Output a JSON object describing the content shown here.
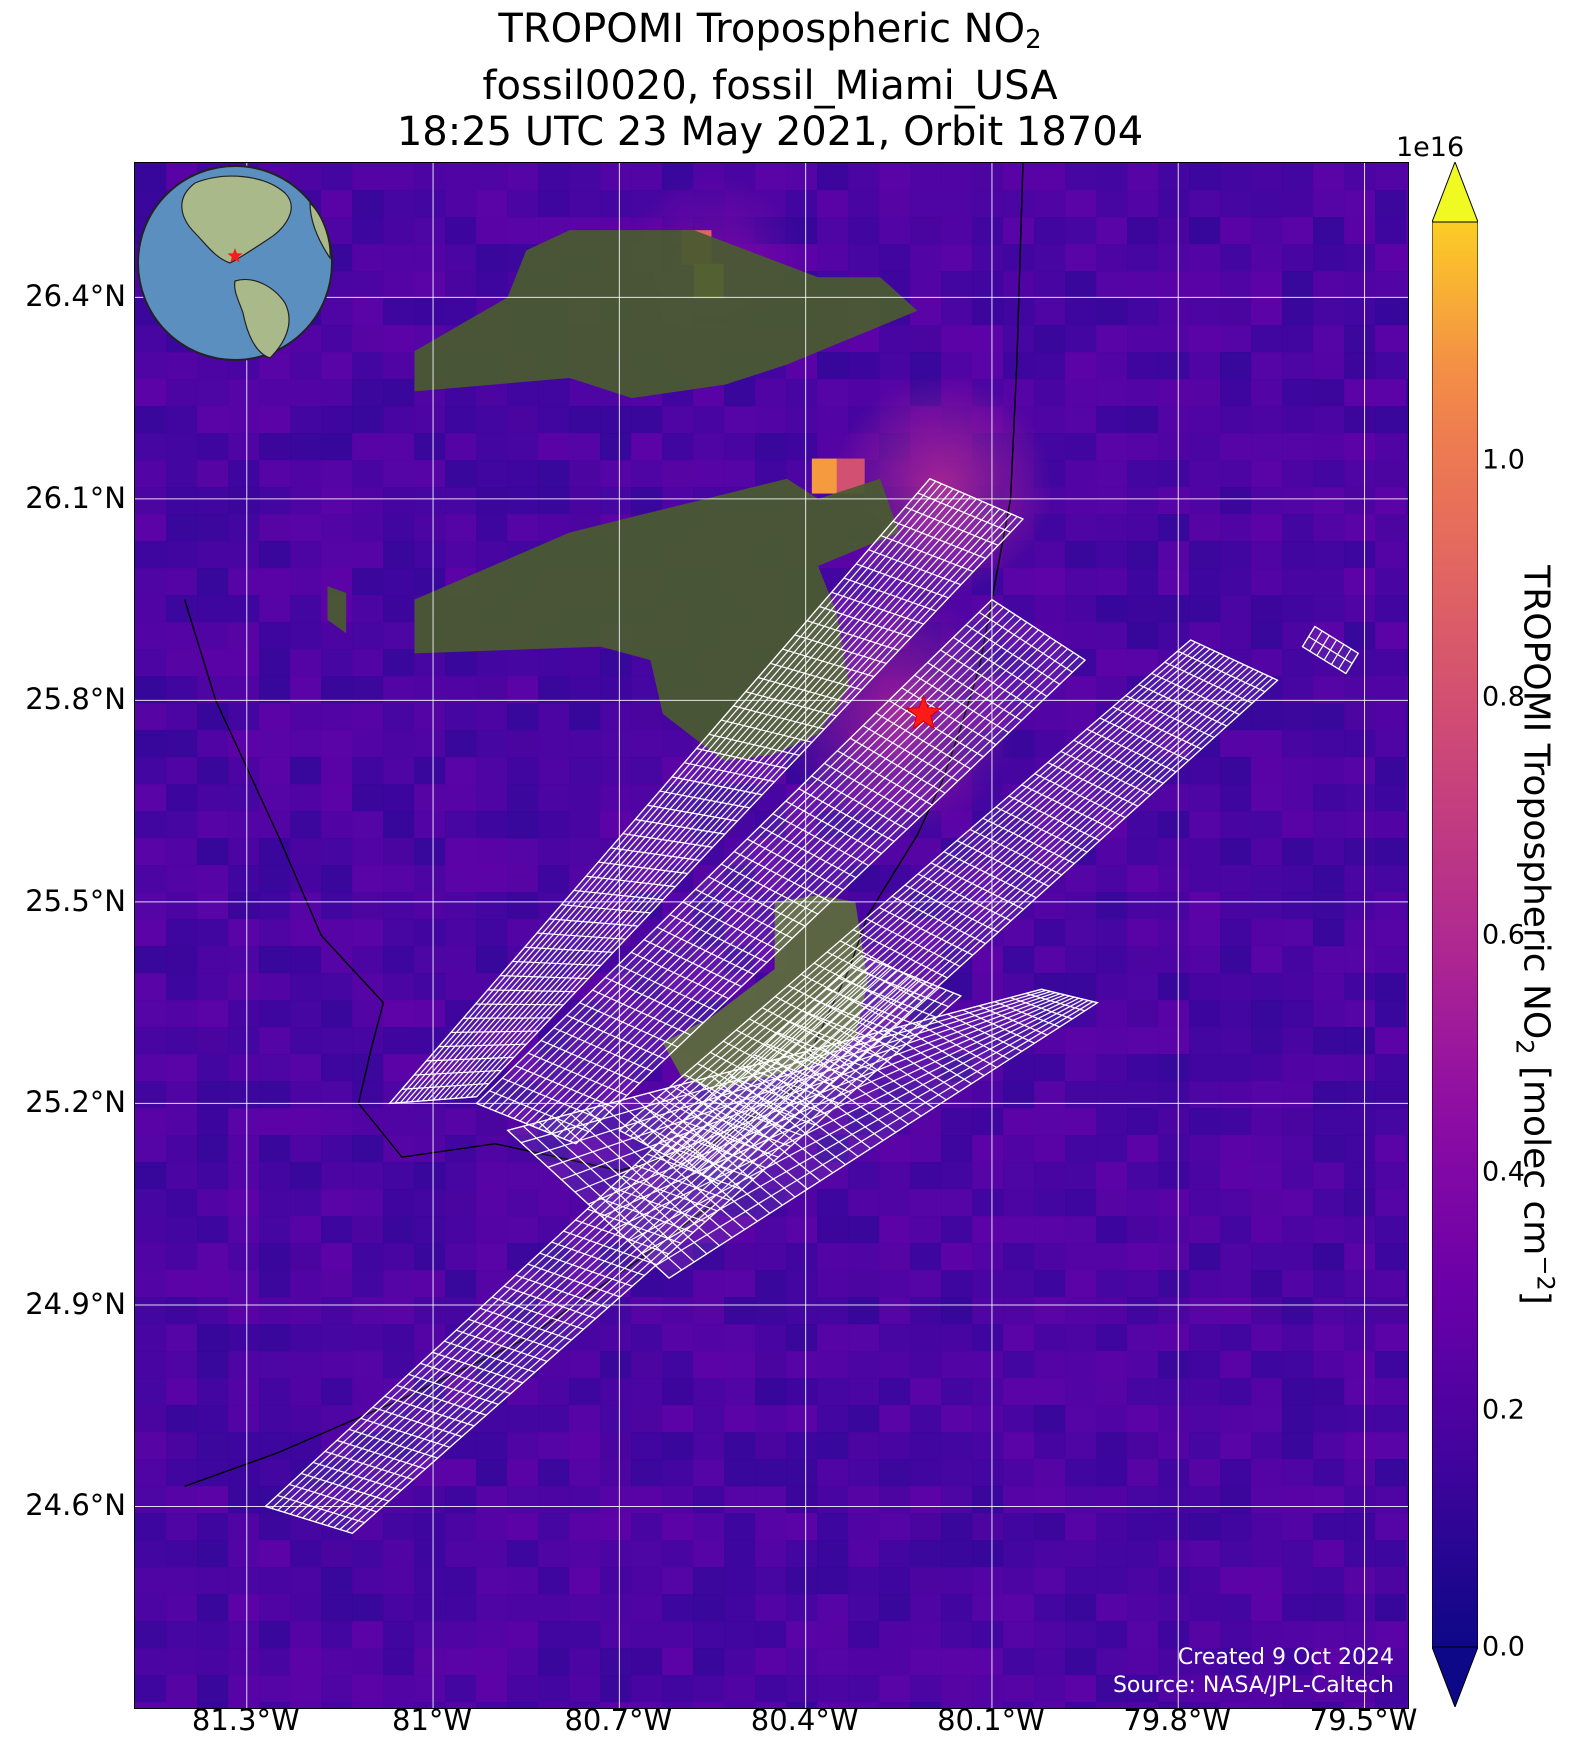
{
  "title": {
    "line1_main": "TROPOMI Tropospheric NO",
    "line1_sub": "2",
    "line2": "fossil0020, fossil_Miami_USA",
    "line3": "18:25 UTC 23 May 2021, Orbit 18704"
  },
  "map": {
    "lat_range": [
      24.3,
      26.6
    ],
    "lon_range": [
      -81.48,
      -79.43
    ],
    "lat_ticks": [
      {
        "value": 26.4,
        "label": "26.4°N"
      },
      {
        "value": 26.1,
        "label": "26.1°N"
      },
      {
        "value": 25.8,
        "label": "25.8°N"
      },
      {
        "value": 25.5,
        "label": "25.5°N"
      },
      {
        "value": 25.2,
        "label": "25.2°N"
      },
      {
        "value": 24.9,
        "label": "24.9°N"
      },
      {
        "value": 24.6,
        "label": "24.6°N"
      }
    ],
    "lon_ticks": [
      {
        "value": -81.3,
        "label": "81.3°W"
      },
      {
        "value": -81.0,
        "label": "81°W"
      },
      {
        "value": -80.7,
        "label": "80.7°W"
      },
      {
        "value": -80.4,
        "label": "80.4°W"
      },
      {
        "value": -80.1,
        "label": "80.1°W"
      },
      {
        "value": -79.8,
        "label": "79.8°W"
      },
      {
        "value": -79.5,
        "label": "79.5°W"
      }
    ],
    "gridlines": true,
    "target": {
      "name": "fossil_Miami_USA",
      "lat": 25.78,
      "lon": -80.21,
      "marker": "red-star"
    },
    "inset_globe": {
      "position": "top-right",
      "ocean_color": "#5b8fbf",
      "land_color": "#a9b98a"
    },
    "overlay_color": "#ffffff"
  },
  "colorbar": {
    "label_main": "TROPOMI Tropospheric NO",
    "label_sub": "2",
    "label_units_pre": " [molec cm",
    "label_sup": "−2",
    "label_units_post": "]",
    "exponent": "1e16",
    "vmin": 0.0,
    "vmax": 1.2,
    "ticks": [
      {
        "value": 0.0,
        "label": "0.0"
      },
      {
        "value": 0.2,
        "label": "0.2"
      },
      {
        "value": 0.4,
        "label": "0.4"
      },
      {
        "value": 0.6,
        "label": "0.6"
      },
      {
        "value": 0.8,
        "label": "0.8"
      },
      {
        "value": 1.0,
        "label": "1.0"
      }
    ],
    "colormap": "plasma",
    "extend": "both"
  },
  "credits": {
    "created": "Created 9 Oct 2024",
    "source": "Source: NASA/JPL-Caltech"
  }
}
